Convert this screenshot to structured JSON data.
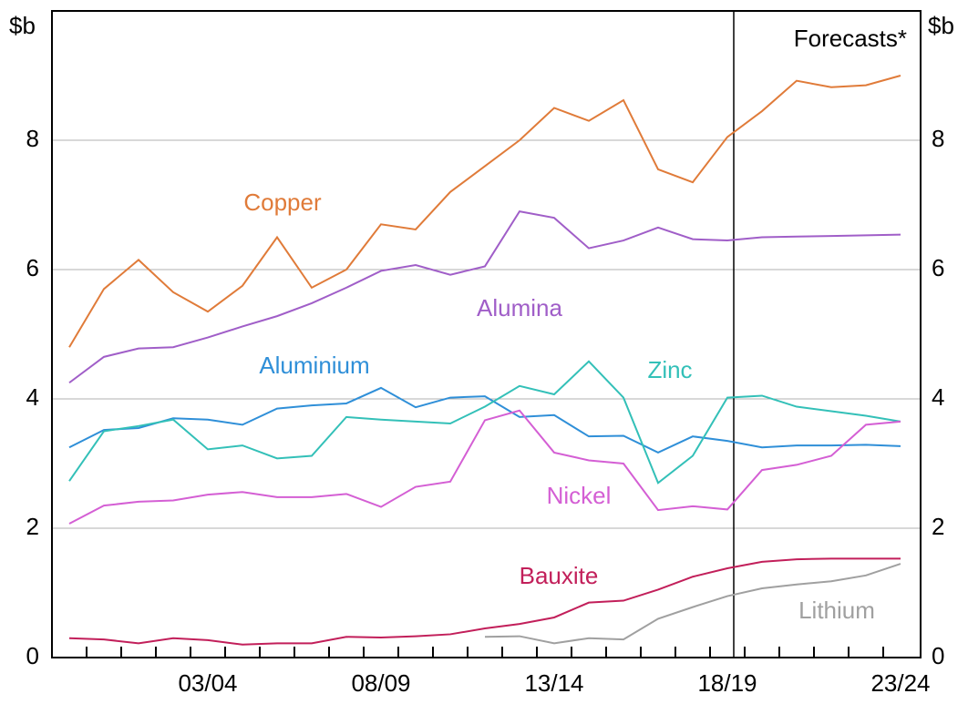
{
  "chart_data": {
    "type": "line",
    "y_unit_left": "$b",
    "y_unit_right": "$b",
    "annotation": "Forecasts*",
    "forecast_index": 19,
    "categories": [
      null,
      null,
      null,
      null,
      "03/04",
      null,
      null,
      null,
      null,
      "08/09",
      null,
      null,
      null,
      null,
      "13/14",
      null,
      null,
      null,
      null,
      "18/19",
      null,
      null,
      null,
      null,
      "23/24"
    ],
    "ylim": [
      0,
      10
    ],
    "yticks": [
      0,
      2,
      4,
      6,
      8
    ],
    "grid": true,
    "series": [
      {
        "name": "Copper",
        "color": "#e07b39",
        "values": [
          4.8,
          5.7,
          6.15,
          5.65,
          5.35,
          5.75,
          6.5,
          5.72,
          6.0,
          6.7,
          6.62,
          7.2,
          7.6,
          8.0,
          8.5,
          8.3,
          8.62,
          7.55,
          7.35,
          8.05,
          8.45,
          8.92,
          8.82,
          8.85,
          9.0
        ]
      },
      {
        "name": "Alumina",
        "color": "#a05ec8",
        "values": [
          4.25,
          4.65,
          4.78,
          4.8,
          4.95,
          5.12,
          5.28,
          5.48,
          5.72,
          5.98,
          6.07,
          5.92,
          6.05,
          6.9,
          6.8,
          6.33,
          6.45,
          6.65,
          6.47,
          6.45,
          6.5,
          6.51,
          6.52,
          6.53,
          6.54
        ]
      },
      {
        "name": "Aluminium",
        "color": "#2f8fd8",
        "values": [
          3.25,
          3.52,
          3.55,
          3.7,
          3.68,
          3.6,
          3.85,
          3.9,
          3.93,
          4.17,
          3.87,
          4.02,
          4.04,
          3.72,
          3.75,
          3.42,
          3.43,
          3.17,
          3.42,
          3.35,
          3.25,
          3.28,
          3.28,
          3.29,
          3.27
        ]
      },
      {
        "name": "Zinc",
        "color": "#33c0b8",
        "values": [
          2.73,
          3.5,
          3.58,
          3.68,
          3.22,
          3.28,
          3.08,
          3.12,
          3.72,
          3.68,
          3.65,
          3.62,
          3.88,
          4.2,
          4.07,
          4.58,
          4.02,
          2.7,
          3.12,
          4.02,
          4.05,
          3.88,
          3.81,
          3.74,
          3.65
        ]
      },
      {
        "name": "Nickel",
        "color": "#d45fd4",
        "values": [
          2.07,
          2.35,
          2.41,
          2.43,
          2.52,
          2.56,
          2.48,
          2.48,
          2.53,
          2.33,
          2.64,
          2.72,
          3.67,
          3.82,
          3.17,
          3.05,
          3.0,
          2.28,
          2.34,
          2.29,
          2.9,
          2.98,
          3.12,
          3.6,
          3.65
        ]
      },
      {
        "name": "Bauxite",
        "color": "#c21f5a",
        "values": [
          0.3,
          0.28,
          0.22,
          0.3,
          0.27,
          0.2,
          0.22,
          0.22,
          0.32,
          0.31,
          0.33,
          0.36,
          0.45,
          0.52,
          0.62,
          0.85,
          0.88,
          1.05,
          1.25,
          1.38,
          1.48,
          1.52,
          1.53,
          1.53,
          1.53
        ]
      },
      {
        "name": "Lithium",
        "color": "#a0a0a0",
        "values": [
          null,
          null,
          null,
          null,
          null,
          null,
          null,
          null,
          null,
          null,
          null,
          null,
          0.32,
          0.33,
          0.22,
          0.3,
          0.28,
          0.6,
          0.78,
          0.95,
          1.07,
          1.13,
          1.18,
          1.27,
          1.45
        ]
      }
    ]
  }
}
